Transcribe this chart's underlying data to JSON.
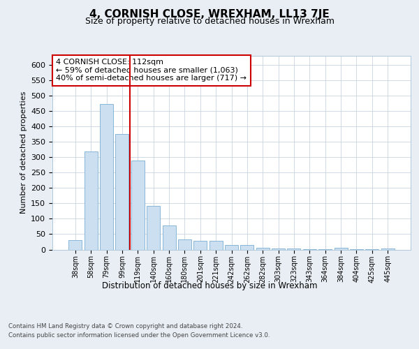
{
  "title": "4, CORNISH CLOSE, WREXHAM, LL13 7JE",
  "subtitle": "Size of property relative to detached houses in Wrexham",
  "xlabel": "Distribution of detached houses by size in Wrexham",
  "ylabel": "Number of detached properties",
  "categories": [
    "38sqm",
    "58sqm",
    "79sqm",
    "99sqm",
    "119sqm",
    "140sqm",
    "160sqm",
    "180sqm",
    "201sqm",
    "221sqm",
    "242sqm",
    "262sqm",
    "282sqm",
    "303sqm",
    "323sqm",
    "343sqm",
    "364sqm",
    "384sqm",
    "404sqm",
    "425sqm",
    "445sqm"
  ],
  "values": [
    30,
    320,
    473,
    375,
    290,
    143,
    78,
    33,
    29,
    28,
    15,
    14,
    6,
    4,
    3,
    2,
    2,
    5,
    2,
    1,
    4
  ],
  "bar_color": "#ccdff0",
  "bar_edge_color": "#7aaed0",
  "vline_color": "#cc0000",
  "vline_pos": 3.5,
  "annotation_text": "4 CORNISH CLOSE: 112sqm\n← 59% of detached houses are smaller (1,063)\n40% of semi-detached houses are larger (717) →",
  "annotation_box_color": "#ffffff",
  "annotation_box_edge_color": "#cc0000",
  "ylim": [
    0,
    630
  ],
  "yticks": [
    0,
    50,
    100,
    150,
    200,
    250,
    300,
    350,
    400,
    450,
    500,
    550,
    600
  ],
  "footer_line1": "Contains HM Land Registry data © Crown copyright and database right 2024.",
  "footer_line2": "Contains public sector information licensed under the Open Government Licence v3.0.",
  "bg_color": "#e8eef4",
  "plot_bg_color": "#ffffff",
  "grid_color": "#c8d4e0",
  "title_fontsize": 11,
  "subtitle_fontsize": 9
}
